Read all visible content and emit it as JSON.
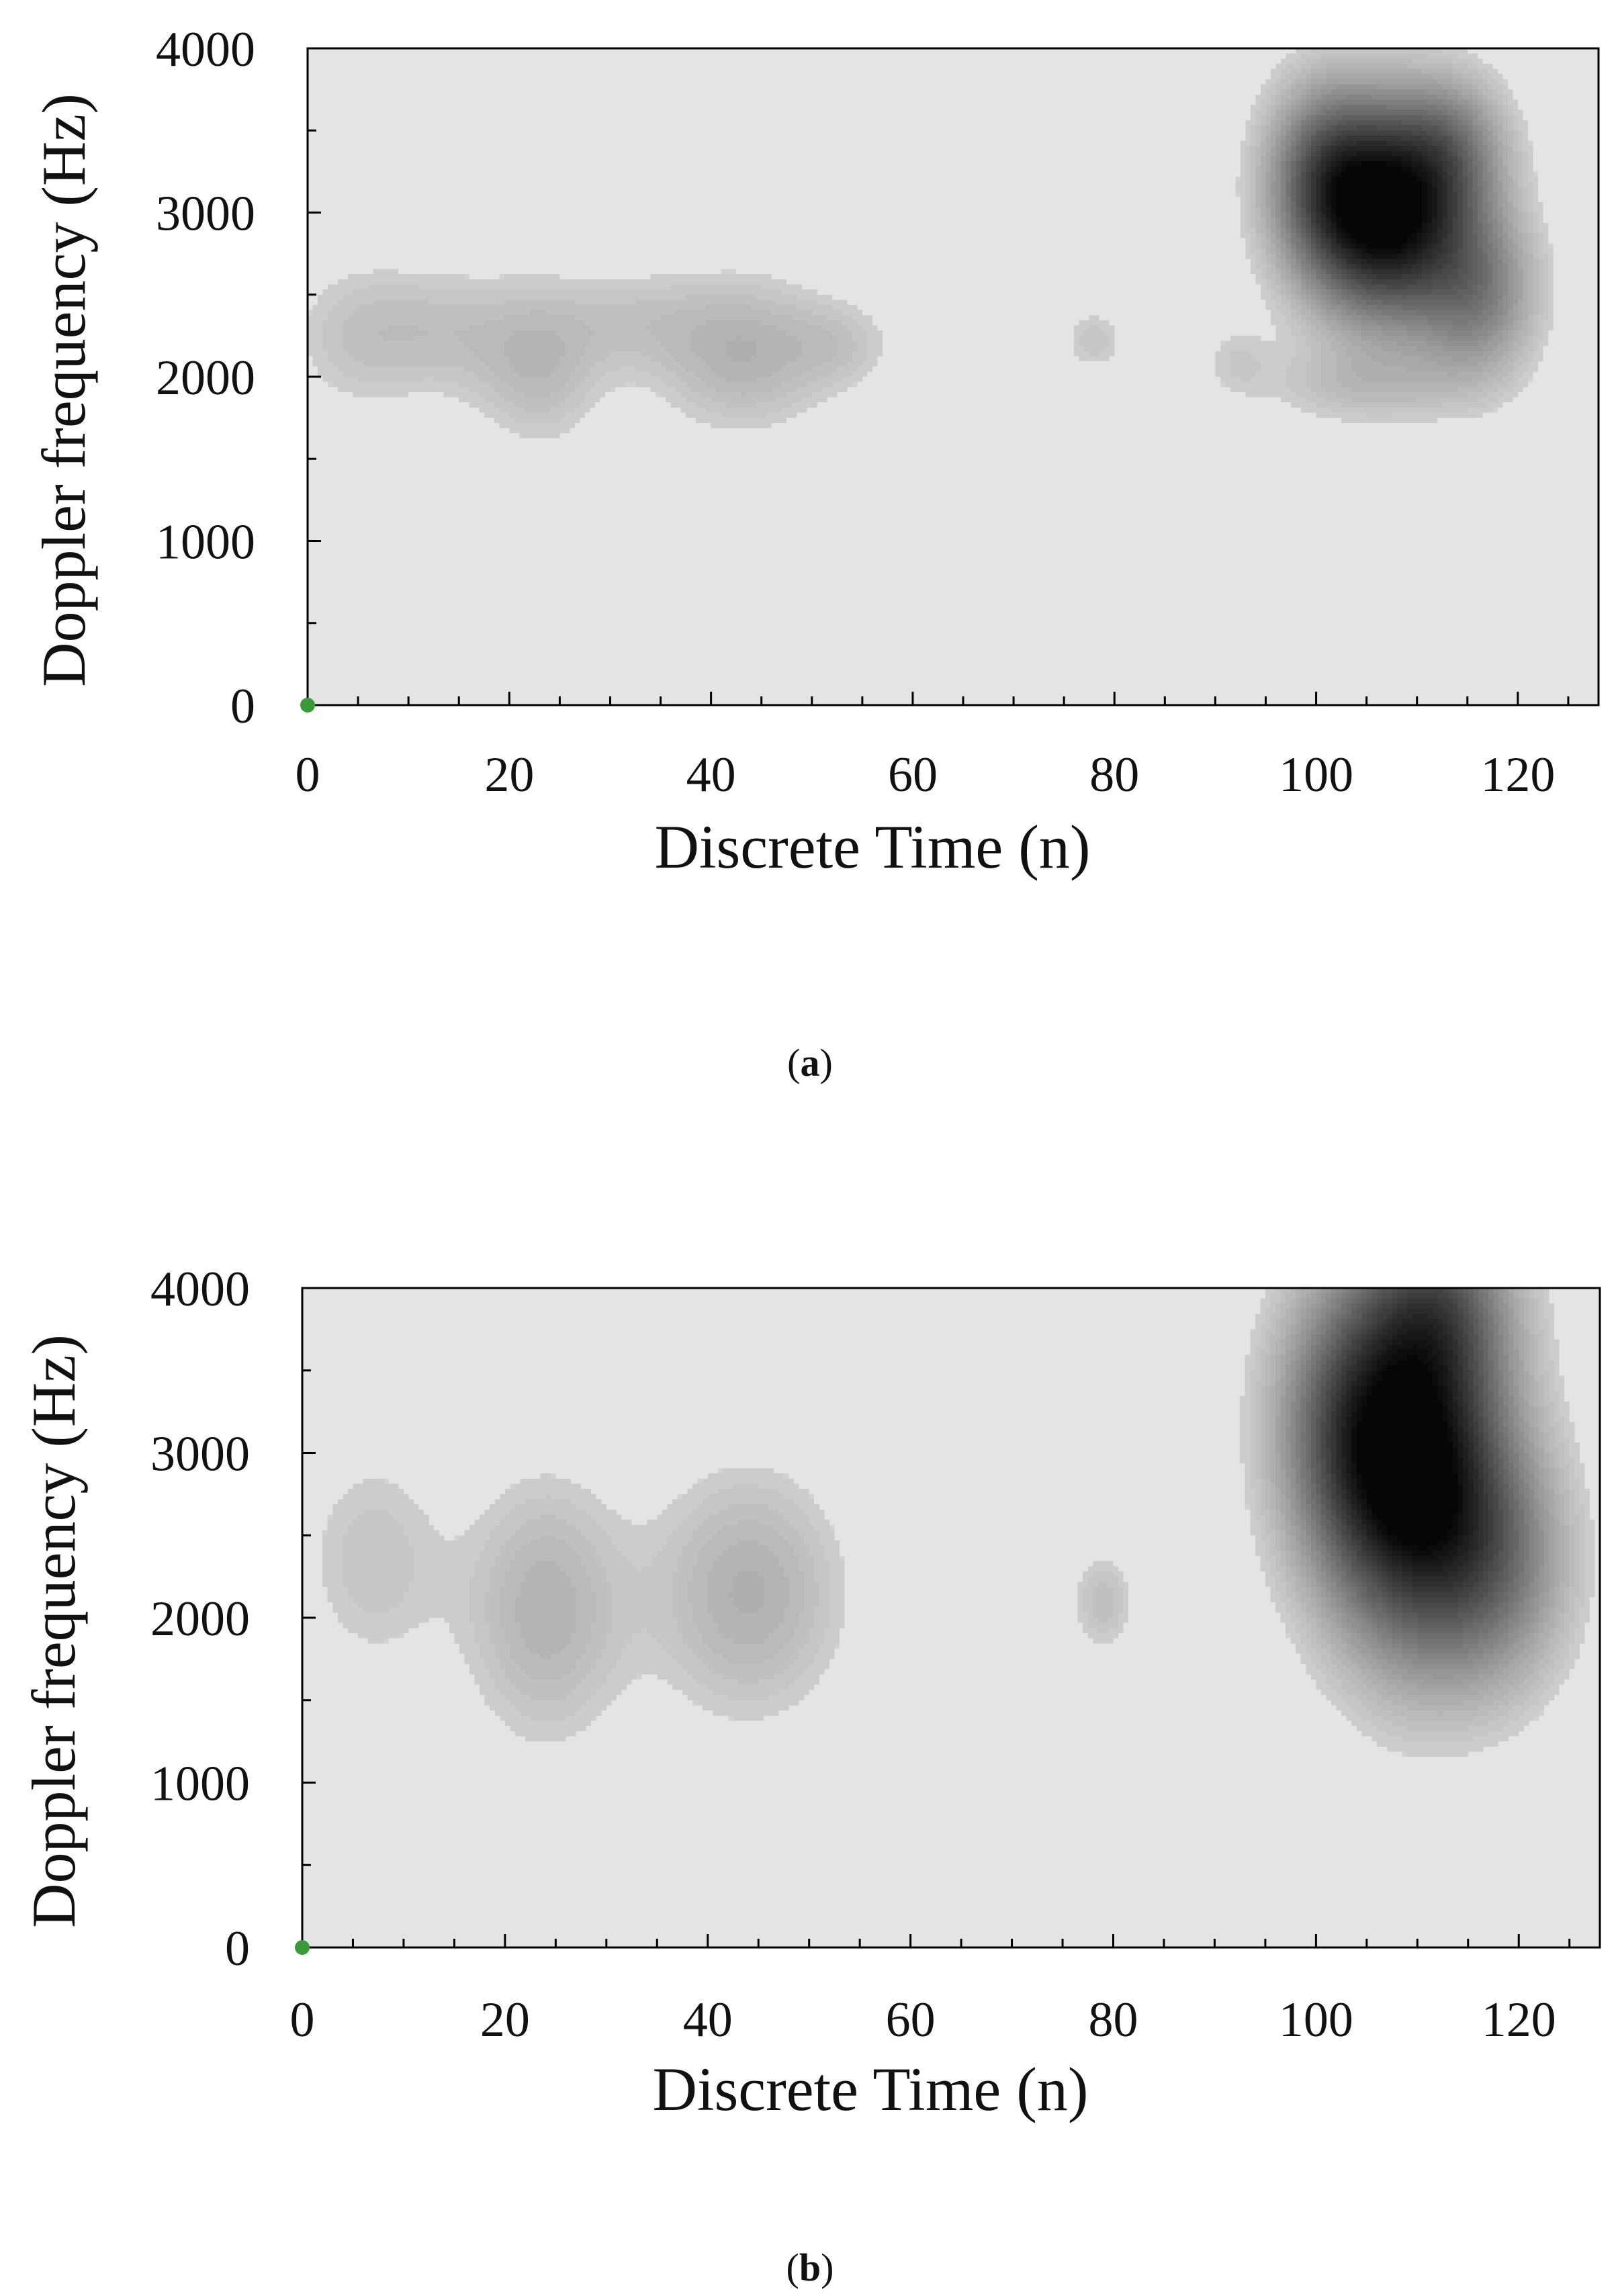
{
  "chart_data": [
    {
      "type": "heatmap",
      "panel_label": "a",
      "caption": {
        "open": "(",
        "letter": "a",
        "close": ")"
      },
      "xlabel": "Discrete Time (n)",
      "ylabel": "Doppler frequency (Hz)",
      "xlim": [
        0,
        128
      ],
      "ylim": [
        0,
        4000
      ],
      "x_ticks": [
        0,
        20,
        40,
        60,
        80,
        100,
        120
      ],
      "x_tick_labels": [
        "0",
        "20",
        "40",
        "60",
        "80",
        "100",
        "120"
      ],
      "y_ticks": [
        0,
        1000,
        2000,
        3000,
        4000
      ],
      "y_tick_labels": [
        "0",
        "1000",
        "2000",
        "3000",
        "4000"
      ],
      "colormap": "gray_reversed",
      "background_color": "#e3e3e3",
      "origin_marker_color": "#3a9a3a",
      "intensity_blobs": [
        {
          "x": 5,
          "y": 2250,
          "sx": 5,
          "sy": 330,
          "amp": 0.1
        },
        {
          "x": 14,
          "y": 2280,
          "sx": 5,
          "sy": 280,
          "amp": 0.09
        },
        {
          "x": 23,
          "y": 2080,
          "sx": 4.5,
          "sy": 350,
          "amp": 0.14
        },
        {
          "x": 32,
          "y": 2350,
          "sx": 5,
          "sy": 220,
          "amp": 0.08
        },
        {
          "x": 43,
          "y": 2150,
          "sx": 6,
          "sy": 330,
          "amp": 0.17
        },
        {
          "x": 53,
          "y": 2200,
          "sx": 4,
          "sy": 200,
          "amp": 0.08
        },
        {
          "x": 78,
          "y": 2220,
          "sx": 2.2,
          "sy": 140,
          "amp": 0.1
        },
        {
          "x": 92,
          "y": 2100,
          "sx": 2.5,
          "sy": 180,
          "amp": 0.07
        },
        {
          "x": 107,
          "y": 2980,
          "sx": 5.5,
          "sy": 420,
          "amp": 1.0
        },
        {
          "x": 101,
          "y": 3250,
          "sx": 4,
          "sy": 380,
          "amp": 0.4
        },
        {
          "x": 116,
          "y": 2500,
          "sx": 4,
          "sy": 350,
          "amp": 0.35
        },
        {
          "x": 113,
          "y": 3400,
          "sx": 4,
          "sy": 300,
          "amp": 0.3
        },
        {
          "x": 105,
          "y": 1950,
          "sx": 7,
          "sy": 170,
          "amp": 0.12
        }
      ]
    },
    {
      "type": "heatmap",
      "panel_label": "b",
      "caption": {
        "open": "(",
        "letter": "b",
        "close": ")"
      },
      "xlabel": "Discrete Time (n)",
      "ylabel": "Doppler frequency (Hz)",
      "xlim": [
        0,
        128
      ],
      "ylim": [
        0,
        4000
      ],
      "x_ticks": [
        0,
        20,
        40,
        60,
        80,
        100,
        120
      ],
      "x_tick_labels": [
        "0",
        "20",
        "40",
        "60",
        "80",
        "100",
        "120"
      ],
      "y_ticks": [
        0,
        1000,
        2000,
        3000,
        4000
      ],
      "y_tick_labels": [
        "0",
        "1000",
        "2000",
        "3000",
        "4000"
      ],
      "colormap": "gray_reversed",
      "background_color": "#e3e3e3",
      "origin_marker_color": "#3a9a3a",
      "intensity_blobs": [
        {
          "x": 7,
          "y": 2350,
          "sx": 5,
          "sy": 480,
          "amp": 0.1
        },
        {
          "x": 24,
          "y": 2050,
          "sx": 5.5,
          "sy": 560,
          "amp": 0.17
        },
        {
          "x": 44,
          "y": 2150,
          "sx": 6.5,
          "sy": 520,
          "amp": 0.18
        },
        {
          "x": 79,
          "y": 2100,
          "sx": 2.2,
          "sy": 220,
          "amp": 0.12
        },
        {
          "x": 110,
          "y": 2850,
          "sx": 6,
          "sy": 700,
          "amp": 1.0
        },
        {
          "x": 103,
          "y": 3200,
          "sx": 5,
          "sy": 600,
          "amp": 0.4
        },
        {
          "x": 118,
          "y": 2300,
          "sx": 5,
          "sy": 500,
          "amp": 0.3
        },
        {
          "x": 112,
          "y": 3900,
          "sx": 5,
          "sy": 400,
          "amp": 0.4
        }
      ]
    }
  ]
}
